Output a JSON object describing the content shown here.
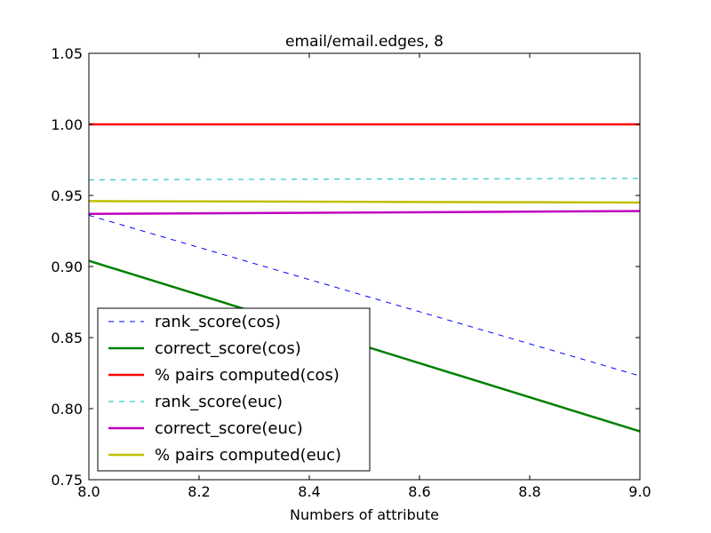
{
  "chart_data": {
    "type": "line",
    "title": "email/email.edges, 8",
    "xlabel": "Numbers of attribute",
    "ylabel": "",
    "xlim": [
      8.0,
      9.0
    ],
    "ylim": [
      0.75,
      1.05
    ],
    "xticks": [
      "8.0",
      "8.2",
      "8.4",
      "8.6",
      "8.8",
      "9.0"
    ],
    "yticks": [
      "0.75",
      "0.80",
      "0.85",
      "0.90",
      "0.95",
      "1.00",
      "1.05"
    ],
    "grid": false,
    "legend_position": "lower-left",
    "x": [
      8,
      9
    ],
    "series": [
      {
        "name": "rank_score(cos)",
        "values": [
          0.936,
          0.823
        ],
        "color": "#0000ff",
        "style": "dashed"
      },
      {
        "name": "correct_score(cos)",
        "values": [
          0.904,
          0.784
        ],
        "color": "#008000",
        "style": "solid"
      },
      {
        "name": "% pairs computed(cos)",
        "values": [
          1.0,
          1.0
        ],
        "color": "#ff0000",
        "style": "solid"
      },
      {
        "name": "rank_score(euc)",
        "values": [
          0.961,
          0.962
        ],
        "color": "#00bfbf",
        "style": "dashed"
      },
      {
        "name": "correct_score(euc)",
        "values": [
          0.937,
          0.939
        ],
        "color": "#bf00bf",
        "style": "solid"
      },
      {
        "name": "% pairs computed(euc)",
        "values": [
          0.946,
          0.945
        ],
        "color": "#bfbf00",
        "style": "solid"
      }
    ]
  }
}
